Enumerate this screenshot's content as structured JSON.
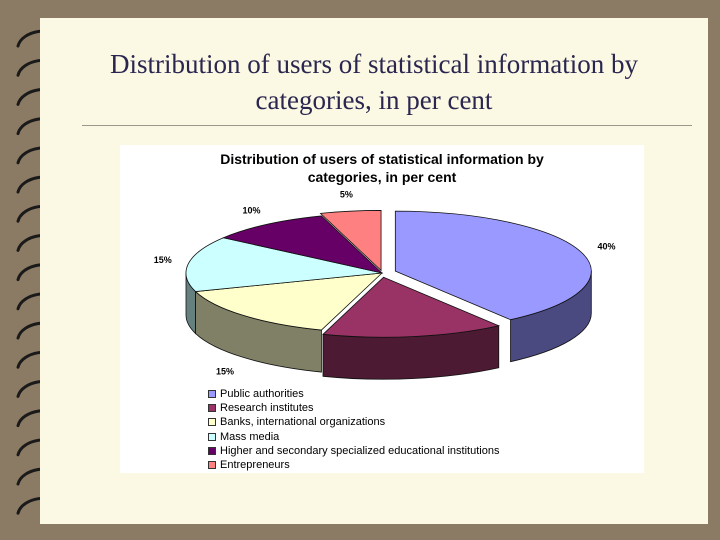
{
  "slide": {
    "title_line1": "Distribution of users of statistical information by",
    "title_line2": "categories, in per cent"
  },
  "chart_data": {
    "type": "pie",
    "title_line1": "Distribution of users of statistical information by",
    "title_line2": "categories, in per cent",
    "legend_position": "bottom",
    "slices": [
      {
        "name": "Public authorities",
        "value": 40,
        "label": "40%",
        "color": "#9999ff",
        "side_color": "#4a4a80"
      },
      {
        "name": "Research institutes",
        "value": 15,
        "label": "15%",
        "color": "#993366",
        "side_color": "#4c1a33"
      },
      {
        "name": "Banks, international organizations",
        "value": 15,
        "label": "15%",
        "color": "#ffffcc",
        "side_color": "#808066"
      },
      {
        "name": "Mass media",
        "value": 15,
        "label": "15%",
        "color": "#ccffff",
        "side_color": "#668080"
      },
      {
        "name": "Higher and secondary specialized educational institutions",
        "value": 10,
        "label": "10%",
        "color": "#660066",
        "side_color": "#330033"
      },
      {
        "name": "Entrepreneurs",
        "value": 5,
        "label": "5%",
        "color": "#ff8080",
        "side_color": "#804040"
      }
    ]
  }
}
